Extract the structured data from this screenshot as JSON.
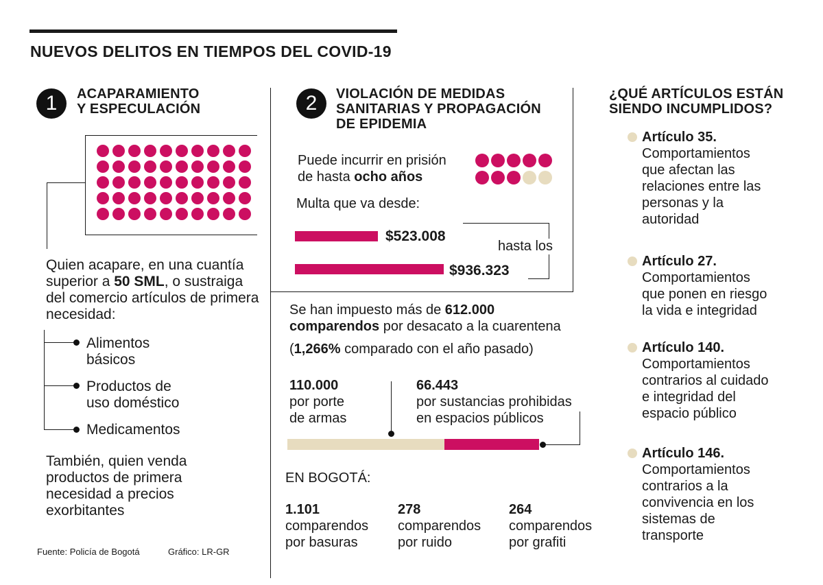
{
  "colors": {
    "magenta": "#cc0f61",
    "beige": "#e7dcbf",
    "dark": "#1a1a1a"
  },
  "title": "NUEVOS DELITOS EN TIEMPOS DEL COVID-19",
  "section1": {
    "number": "1",
    "heading": [
      "ACAPARAMIENTO",
      "Y ESPECULACIÓN"
    ],
    "dot_count": 50,
    "desc_pre": "Quien acapare, en una cuantía superior a ",
    "desc_bold": "50 SML",
    "desc_post": ", o sustraiga del comercio artículos de primera necesidad:",
    "items": [
      [
        "Alimentos",
        "básicos"
      ],
      [
        "Productos de",
        "uso doméstico"
      ],
      [
        "Medicamentos"
      ]
    ],
    "also": "También, quien venda productos de primera necesidad a precios exorbitantes"
  },
  "section2": {
    "number": "2",
    "heading": [
      "VIOLACIÓN DE MEDIDAS",
      "SANITARIAS Y PROPAGACIÓN",
      "DE EPIDEMIA"
    ],
    "prison_line1": "Puede incurrir en prisión",
    "prison_line2_pre": "de hasta ",
    "prison_line2_bold": "ocho años",
    "prison_years": 8,
    "prison_total": 10,
    "fine_label": "Multa que va desde:",
    "fine_min": "$523.008",
    "fine_max": "$936.323",
    "fine_min_value": 523008,
    "fine_max_value": 936323,
    "fine_until": "hasta los",
    "comparendos_pre": "Se han impuesto más de ",
    "comparendos_bold1": "612.000",
    "comparendos_bold2": "comparendos",
    "comparendos_post": " por desacato a la cuarentena",
    "percent_open": "(",
    "percent_bold": "1,266%",
    "percent_rest": " comparado con el año pasado)",
    "total_value": 612000,
    "armas_value_num": 110000,
    "sustancias_value_num": 66443,
    "armas_value": "110.000",
    "armas_label": [
      "por porte",
      "de armas"
    ],
    "sustancias_value": "66.443",
    "sustancias_label": [
      "por sustancias prohibidas",
      "en espacios públicos"
    ],
    "bogota_label": "EN BOGOTÁ:",
    "bogota": [
      {
        "value": "1.101",
        "label": [
          "comparendos",
          "por basuras"
        ]
      },
      {
        "value": "278",
        "label": [
          "comparendos",
          "por ruido"
        ]
      },
      {
        "value": "264",
        "label": [
          "comparendos",
          "por grafiti"
        ]
      }
    ]
  },
  "articles": {
    "heading": [
      "¿QUÉ ARTÍCULOS ESTÁN",
      "SIENDO INCUMPLIDOS?"
    ],
    "items": [
      {
        "title": "Artículo 35.",
        "desc": [
          "Comportamientos",
          "que afectan las",
          "relaciones entre las",
          "personas y la",
          "autoridad"
        ]
      },
      {
        "title": "Artículo 27.",
        "desc": [
          "Comportamientos",
          "que ponen en riesgo",
          "la vida e integridad"
        ]
      },
      {
        "title": "Artículo 140.",
        "desc": [
          "Comportamientos",
          "contrarios al cuidado",
          "e integridad del",
          "espacio público"
        ]
      },
      {
        "title": "Artículo 146.",
        "desc": [
          "Comportamientos",
          "contrarios a la",
          "convivencia en los",
          "sistemas de",
          "transporte"
        ]
      }
    ]
  },
  "footer": {
    "source": "Fuente: Policía de Bogotá",
    "graphic": "Gráfico: LR-GR"
  }
}
